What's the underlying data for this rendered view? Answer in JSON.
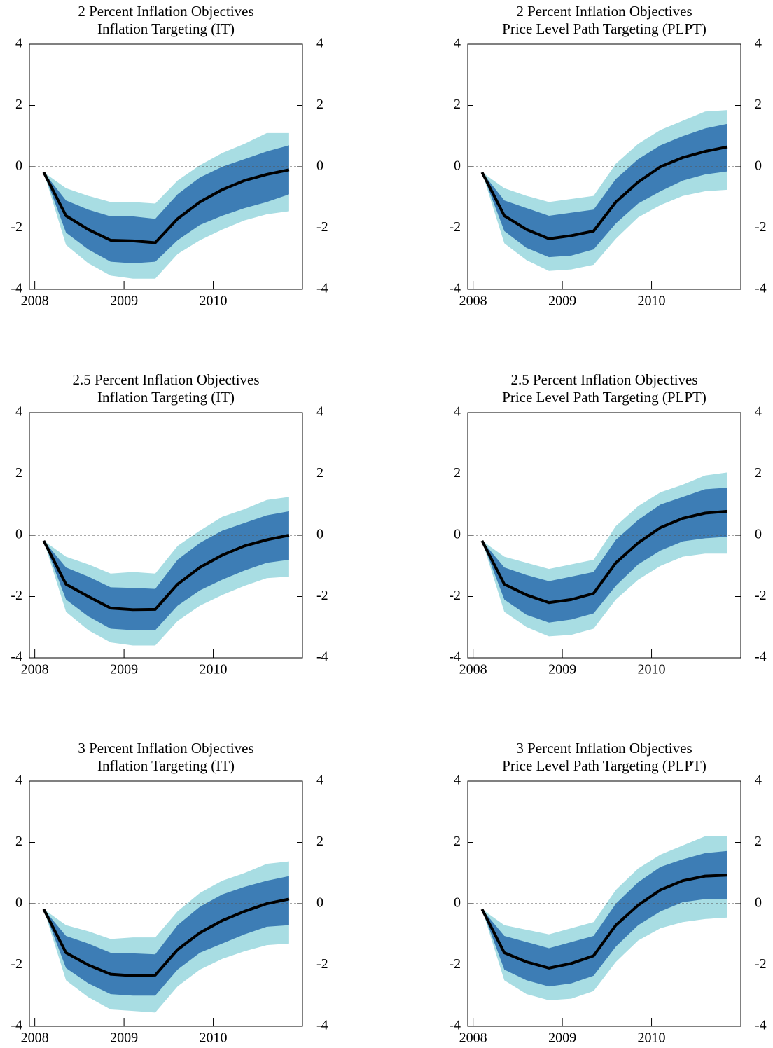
{
  "chart_data": [
    {
      "type": "fan",
      "title": "2 Percent Inflation Objectives",
      "subtitle": "Inflation Targeting (IT)",
      "x": [
        2008.1,
        2008.35,
        2008.6,
        2008.85,
        2009.1,
        2009.35,
        2009.6,
        2009.85,
        2010.1,
        2010.35,
        2010.6,
        2010.85
      ],
      "values": [
        -0.18,
        -1.6,
        -2.05,
        -2.4,
        -2.42,
        -2.48,
        -1.7,
        -1.15,
        -0.75,
        -0.45,
        -0.25,
        -0.1
      ],
      "color": "#000000",
      "inner_band": {
        "color": "#3d7db5",
        "upper": [
          -0.18,
          -1.1,
          -1.4,
          -1.62,
          -1.62,
          -1.7,
          -0.9,
          -0.35,
          0.0,
          0.25,
          0.5,
          0.7
        ],
        "lower": [
          -0.18,
          -2.15,
          -2.7,
          -3.1,
          -3.15,
          -3.1,
          -2.4,
          -1.9,
          -1.6,
          -1.35,
          -1.15,
          -0.9
        ]
      },
      "outer_band": {
        "color": "#a8dde3",
        "upper": [
          -0.18,
          -0.7,
          -0.95,
          -1.15,
          -1.15,
          -1.2,
          -0.45,
          0.05,
          0.45,
          0.75,
          1.1,
          1.1
        ],
        "lower": [
          -0.18,
          -2.55,
          -3.15,
          -3.55,
          -3.65,
          -3.65,
          -2.85,
          -2.4,
          -2.05,
          -1.75,
          -1.55,
          -1.45
        ]
      },
      "xlim": [
        2007.94,
        2011.0
      ],
      "xticks": [
        2008,
        2009,
        2010
      ],
      "ylim": [
        -4,
        4
      ],
      "yticks": [
        -4,
        -2,
        0,
        2,
        4
      ],
      "hline": 0
    },
    {
      "type": "fan",
      "title": "2 Percent Inflation Objectives",
      "subtitle": "Price Level Path Targeting (PLPT)",
      "x": [
        2008.1,
        2008.35,
        2008.6,
        2008.85,
        2009.1,
        2009.35,
        2009.6,
        2009.85,
        2010.1,
        2010.35,
        2010.6,
        2010.85
      ],
      "values": [
        -0.18,
        -1.6,
        -2.05,
        -2.35,
        -2.25,
        -2.1,
        -1.15,
        -0.5,
        0.0,
        0.3,
        0.5,
        0.65
      ],
      "color": "#000000",
      "inner_band": {
        "color": "#3d7db5",
        "upper": [
          -0.18,
          -1.1,
          -1.35,
          -1.6,
          -1.5,
          -1.4,
          -0.4,
          0.25,
          0.7,
          1.0,
          1.25,
          1.4
        ],
        "lower": [
          -0.18,
          -2.1,
          -2.65,
          -2.95,
          -2.9,
          -2.7,
          -1.85,
          -1.2,
          -0.8,
          -0.45,
          -0.25,
          -0.15
        ]
      },
      "outer_band": {
        "color": "#a8dde3",
        "upper": [
          -0.18,
          -0.7,
          -0.95,
          -1.15,
          -1.05,
          -0.95,
          0.1,
          0.75,
          1.2,
          1.5,
          1.8,
          1.85
        ],
        "lower": [
          -0.18,
          -2.5,
          -3.05,
          -3.4,
          -3.35,
          -3.2,
          -2.35,
          -1.65,
          -1.25,
          -0.95,
          -0.8,
          -0.75
        ]
      },
      "xlim": [
        2007.94,
        2011.0
      ],
      "xticks": [
        2008,
        2009,
        2010
      ],
      "ylim": [
        -4,
        4
      ],
      "yticks": [
        -4,
        -2,
        0,
        2,
        4
      ],
      "hline": 0
    },
    {
      "type": "fan",
      "title": "2.5 Percent Inflation Objectives",
      "subtitle": "Inflation Targeting (IT)",
      "x": [
        2008.1,
        2008.35,
        2008.6,
        2008.85,
        2009.1,
        2009.35,
        2009.6,
        2009.85,
        2010.1,
        2010.35,
        2010.6,
        2010.85
      ],
      "values": [
        -0.18,
        -1.6,
        -2.0,
        -2.38,
        -2.43,
        -2.42,
        -1.6,
        -1.05,
        -0.65,
        -0.35,
        -0.15,
        0.0
      ],
      "color": "#000000",
      "inner_band": {
        "color": "#3d7db5",
        "upper": [
          -0.18,
          -1.05,
          -1.35,
          -1.7,
          -1.72,
          -1.75,
          -0.8,
          -0.25,
          0.15,
          0.4,
          0.65,
          0.78
        ],
        "lower": [
          -0.18,
          -2.1,
          -2.65,
          -3.05,
          -3.1,
          -3.1,
          -2.3,
          -1.8,
          -1.45,
          -1.15,
          -0.9,
          -0.8
        ]
      },
      "outer_band": {
        "color": "#a8dde3",
        "upper": [
          -0.18,
          -0.7,
          -0.95,
          -1.25,
          -1.2,
          -1.25,
          -0.35,
          0.15,
          0.6,
          0.85,
          1.15,
          1.25
        ],
        "lower": [
          -0.18,
          -2.5,
          -3.1,
          -3.5,
          -3.6,
          -3.6,
          -2.8,
          -2.3,
          -1.95,
          -1.65,
          -1.4,
          -1.35
        ]
      },
      "xlim": [
        2007.94,
        2011.0
      ],
      "xticks": [
        2008,
        2009,
        2010
      ],
      "ylim": [
        -4,
        4
      ],
      "yticks": [
        -4,
        -2,
        0,
        2,
        4
      ],
      "hline": 0
    },
    {
      "type": "fan",
      "title": "2.5 Percent Inflation Objectives",
      "subtitle": "Price Level Path Targeting (PLPT)",
      "x": [
        2008.1,
        2008.35,
        2008.6,
        2008.85,
        2009.1,
        2009.35,
        2009.6,
        2009.85,
        2010.1,
        2010.35,
        2010.6,
        2010.85
      ],
      "values": [
        -0.18,
        -1.6,
        -1.95,
        -2.2,
        -2.1,
        -1.9,
        -0.9,
        -0.25,
        0.25,
        0.55,
        0.72,
        0.78
      ],
      "color": "#000000",
      "inner_band": {
        "color": "#3d7db5",
        "upper": [
          -0.18,
          -1.05,
          -1.3,
          -1.5,
          -1.35,
          -1.2,
          -0.15,
          0.5,
          1.0,
          1.25,
          1.5,
          1.55
        ],
        "lower": [
          -0.18,
          -2.1,
          -2.6,
          -2.85,
          -2.75,
          -2.55,
          -1.65,
          -0.95,
          -0.5,
          -0.2,
          -0.1,
          -0.05
        ]
      },
      "outer_band": {
        "color": "#a8dde3",
        "upper": [
          -0.18,
          -0.7,
          -0.9,
          -1.1,
          -0.95,
          -0.8,
          0.3,
          0.95,
          1.4,
          1.65,
          1.95,
          2.05
        ],
        "lower": [
          -0.18,
          -2.5,
          -3.0,
          -3.3,
          -3.25,
          -3.05,
          -2.1,
          -1.45,
          -1.0,
          -0.7,
          -0.6,
          -0.6
        ]
      },
      "xlim": [
        2007.94,
        2011.0
      ],
      "xticks": [
        2008,
        2009,
        2010
      ],
      "ylim": [
        -4,
        4
      ],
      "yticks": [
        -4,
        -2,
        0,
        2,
        4
      ],
      "hline": 0
    },
    {
      "type": "fan",
      "title": "3 Percent Inflation Objectives",
      "subtitle": "Inflation Targeting (IT)",
      "x": [
        2008.1,
        2008.35,
        2008.6,
        2008.85,
        2009.1,
        2009.35,
        2009.6,
        2009.85,
        2010.1,
        2010.35,
        2010.6,
        2010.85
      ],
      "values": [
        -0.18,
        -1.6,
        -2.0,
        -2.3,
        -2.35,
        -2.33,
        -1.5,
        -0.95,
        -0.55,
        -0.25,
        0.0,
        0.15
      ],
      "color": "#000000",
      "inner_band": {
        "color": "#3d7db5",
        "upper": [
          -0.18,
          -1.05,
          -1.3,
          -1.6,
          -1.62,
          -1.65,
          -0.7,
          -0.1,
          0.3,
          0.55,
          0.75,
          0.9
        ],
        "lower": [
          -0.18,
          -2.1,
          -2.6,
          -2.95,
          -3.0,
          -3.0,
          -2.15,
          -1.6,
          -1.3,
          -1.0,
          -0.75,
          -0.7
        ]
      },
      "outer_band": {
        "color": "#a8dde3",
        "upper": [
          -0.18,
          -0.7,
          -0.9,
          -1.15,
          -1.1,
          -1.1,
          -0.25,
          0.35,
          0.75,
          1.0,
          1.3,
          1.38
        ],
        "lower": [
          -0.18,
          -2.5,
          -3.05,
          -3.45,
          -3.5,
          -3.55,
          -2.7,
          -2.15,
          -1.8,
          -1.55,
          -1.35,
          -1.3
        ]
      },
      "xlim": [
        2007.94,
        2011.0
      ],
      "xticks": [
        2008,
        2009,
        2010
      ],
      "ylim": [
        -4,
        4
      ],
      "yticks": [
        -4,
        -2,
        0,
        2,
        4
      ],
      "hline": 0
    },
    {
      "type": "fan",
      "title": "3 Percent Inflation Objectives",
      "subtitle": "Price Level Path Targeting (PLPT)",
      "x": [
        2008.1,
        2008.35,
        2008.6,
        2008.85,
        2009.1,
        2009.35,
        2009.6,
        2009.85,
        2010.1,
        2010.35,
        2010.6,
        2010.85
      ],
      "values": [
        -0.18,
        -1.6,
        -1.9,
        -2.1,
        -1.95,
        -1.7,
        -0.7,
        -0.05,
        0.45,
        0.75,
        0.9,
        0.93
      ],
      "color": "#000000",
      "inner_band": {
        "color": "#3d7db5",
        "upper": [
          -0.18,
          -1.05,
          -1.25,
          -1.45,
          -1.25,
          -1.05,
          0.0,
          0.7,
          1.2,
          1.45,
          1.65,
          1.72
        ],
        "lower": [
          -0.18,
          -2.15,
          -2.5,
          -2.7,
          -2.6,
          -2.35,
          -1.4,
          -0.7,
          -0.25,
          0.05,
          0.15,
          0.15
        ]
      },
      "outer_band": {
        "color": "#a8dde3",
        "upper": [
          -0.18,
          -0.7,
          -0.85,
          -1.0,
          -0.8,
          -0.6,
          0.45,
          1.15,
          1.6,
          1.9,
          2.2,
          2.2
        ],
        "lower": [
          -0.18,
          -2.5,
          -2.95,
          -3.15,
          -3.1,
          -2.85,
          -1.9,
          -1.2,
          -0.8,
          -0.6,
          -0.5,
          -0.45
        ]
      },
      "xlim": [
        2007.94,
        2011.0
      ],
      "xticks": [
        2008,
        2009,
        2010
      ],
      "ylim": [
        -4,
        4
      ],
      "yticks": [
        -4,
        -2,
        0,
        2,
        4
      ],
      "hline": 0
    }
  ]
}
